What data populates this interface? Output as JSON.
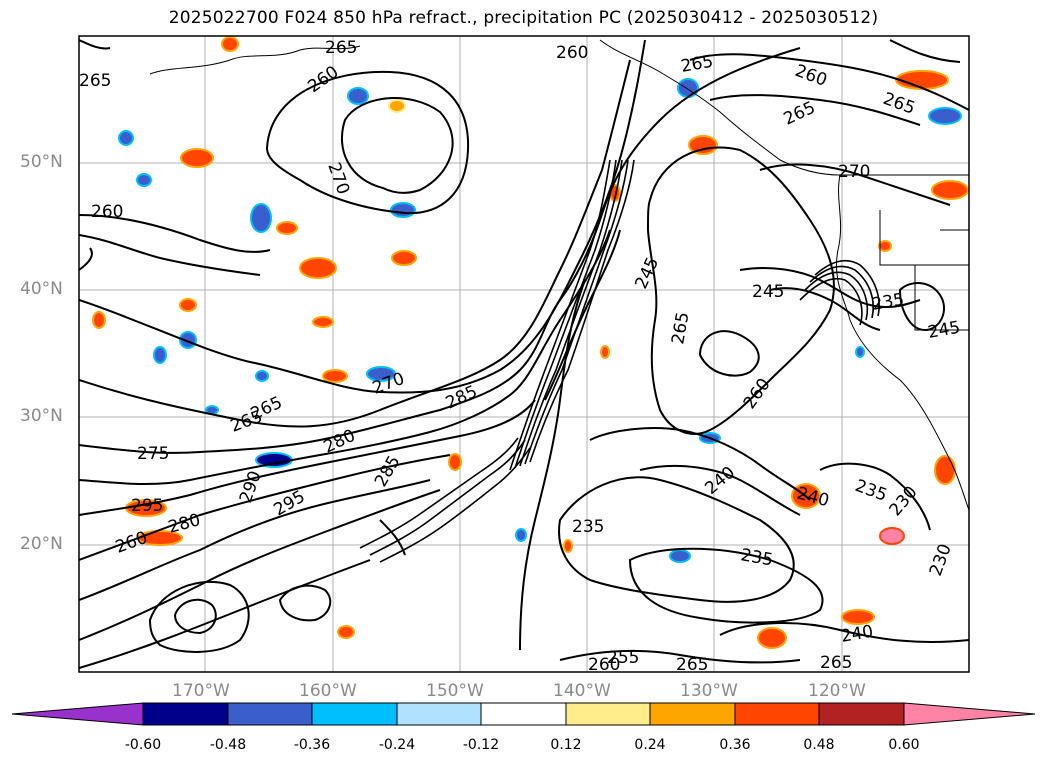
{
  "title": "2025022700 F024 850 hPa refract., precipitation PC (2025030412 - 2025030512)",
  "lat_labels": [
    "50°N",
    "40°N",
    "30°N",
    "20°N"
  ],
  "lon_labels": [
    "170°W",
    "160°W",
    "150°W",
    "140°W",
    "130°W",
    "120°W"
  ],
  "contour_labels": [
    "265",
    "260",
    "265",
    "260",
    "270",
    "260",
    "265",
    "265",
    "260",
    "265",
    "270",
    "245",
    "265",
    "245",
    "235",
    "245",
    "260",
    "275",
    "265",
    "265",
    "270",
    "285",
    "280",
    "285",
    "290",
    "295",
    "295",
    "280",
    "260",
    "240",
    "240",
    "235",
    "235",
    "235",
    "230",
    "230",
    "240",
    "255",
    "265",
    "260",
    "265"
  ],
  "colorbar": {
    "ticks": [
      "-0.60",
      "-0.48",
      "-0.36",
      "-0.24",
      "-0.12",
      "0.12",
      "0.24",
      "0.36",
      "0.48",
      "0.60"
    ],
    "colors": [
      "#9932cc",
      "#00008b",
      "#3a5fcd",
      "#00bfff",
      "#b0e2ff",
      "#ffffff",
      "#ffec8b",
      "#ffa500",
      "#ff4500",
      "#b22222",
      "#ff83a5"
    ]
  }
}
